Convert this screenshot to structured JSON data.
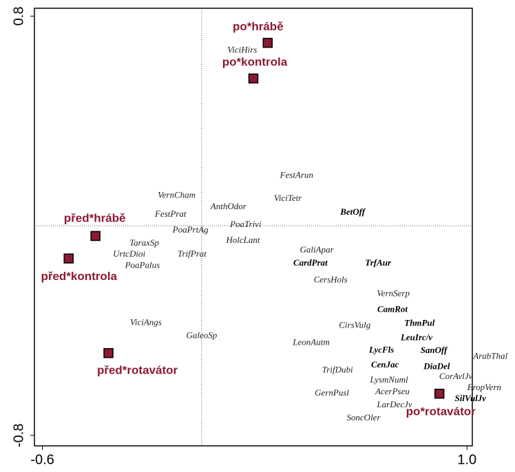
{
  "chart_data": {
    "type": "scatter",
    "xlim": [
      -0.63,
      1.02
    ],
    "ylim": [
      -0.84,
      0.83
    ],
    "xticks": [
      -0.6,
      {
        "value": 1,
        "label": "1.0"
      }
    ],
    "yticks": [
      -0.8,
      0.8
    ],
    "samples": {
      "color": "#8b1a33",
      "labels": [
        "po*hrábě",
        "po*kontrola",
        "před*hrábě",
        "před*kontrola",
        "před*rotavátor",
        "po*rotavátor"
      ],
      "x": [
        0.249,
        0.195,
        -0.4,
        -0.501,
        -0.351,
        0.896
      ],
      "y": [
        0.698,
        0.562,
        -0.039,
        -0.125,
        -0.486,
        -0.641
      ]
    },
    "species": {
      "labels": [
        "ViciHirs",
        "FestArun",
        "VernCham",
        "ViciTetr",
        "AnthOdor",
        "FestPrat",
        "BetOff",
        "PoaTrivi",
        "PoaPrtAg",
        "HolcLant",
        "TaraxSp",
        "GaliApar",
        "UrtcDioi",
        "TrifPrat",
        "CardPrat",
        "TrfAur",
        "PoaPalus",
        "CersHols",
        "VernSerp",
        "CamRot",
        "ViciAngs",
        "ThmPul",
        "CirsVulg",
        "GaleoSp",
        "LeuIrc/v",
        "LeonAutm",
        "SanOff",
        "LycFls",
        "ArabThal",
        "CenJac",
        "DiaDel",
        "TrifDubi",
        "CorAvlJv",
        "LysmNuml",
        "EropVern",
        "AcerPseu",
        "GernPusl",
        "SilVulJv",
        "LarDecJv",
        "SoncOler"
      ],
      "x": [
        0.153,
        0.358,
        -0.094,
        0.325,
        0.101,
        -0.117,
        0.569,
        0.166,
        -0.042,
        0.156,
        -0.216,
        0.434,
        -0.273,
        -0.036,
        0.41,
        0.665,
        -0.223,
        0.486,
        0.722,
        0.719,
        -0.21,
        0.821,
        0.577,
        0.0,
        0.81,
        0.413,
        0.875,
        0.678,
        1.088,
        0.691,
        0.886,
        0.512,
        0.958,
        0.706,
        1.065,
        0.719,
        0.491,
        1.013,
        0.727,
        0.61
      ],
      "y": [
        0.669,
        0.191,
        0.115,
        0.102,
        0.071,
        0.042,
        0.05,
        0.003,
        -0.018,
        -0.058,
        -0.068,
        -0.094,
        -0.11,
        -0.11,
        -0.144,
        -0.144,
        -0.154,
        -0.209,
        -0.261,
        -0.322,
        -0.371,
        -0.374,
        -0.382,
        -0.421,
        -0.429,
        -0.447,
        -0.478,
        -0.476,
        -0.5,
        -0.533,
        -0.539,
        -0.552,
        -0.578,
        -0.591,
        -0.62,
        -0.635,
        -0.641,
        -0.661,
        -0.685,
        -0.735
      ],
      "bold": [
        false,
        false,
        false,
        false,
        false,
        false,
        true,
        false,
        false,
        false,
        false,
        false,
        false,
        false,
        true,
        true,
        false,
        false,
        false,
        true,
        false,
        true,
        false,
        false,
        true,
        false,
        true,
        true,
        false,
        true,
        true,
        false,
        false,
        false,
        false,
        false,
        false,
        true,
        false,
        false
      ]
    }
  }
}
